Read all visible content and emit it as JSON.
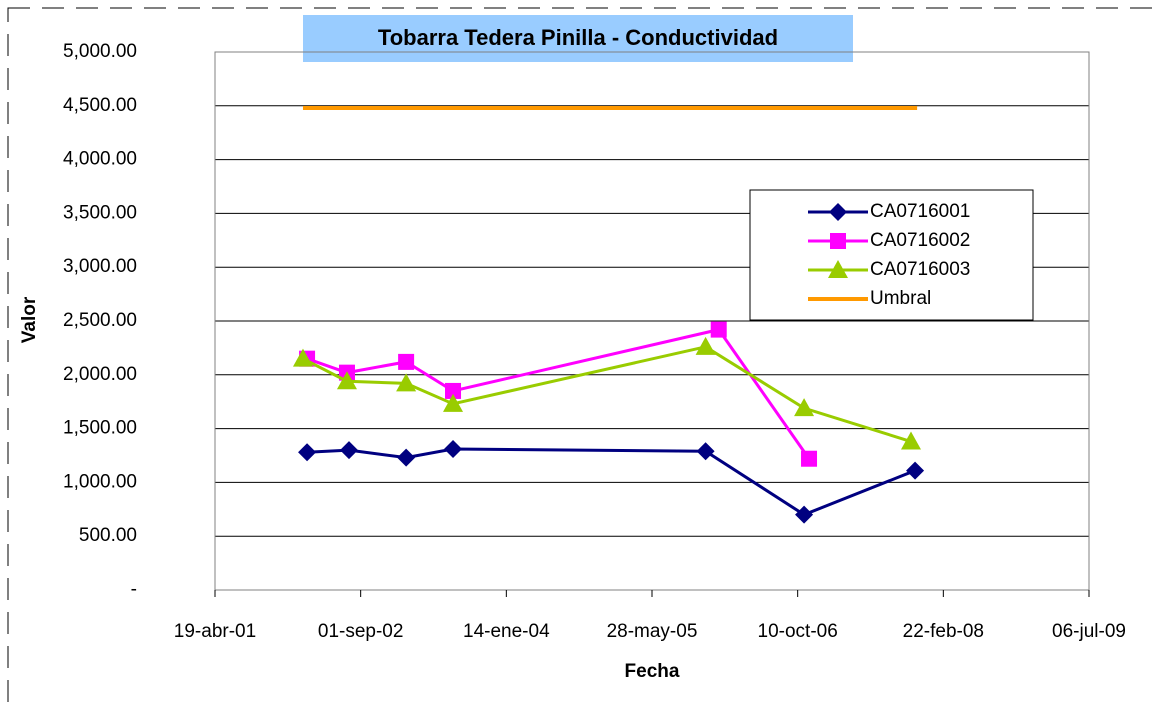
{
  "chart_data": {
    "type": "line",
    "title": "Tobarra Tedera Pinilla - Conductividad",
    "x_label": "Fecha",
    "y_label": "Valor",
    "xlim": [
      "2001-04-19",
      "2009-07-06"
    ],
    "xticks": [
      {
        "value": "2001-04-19",
        "label": "19-abr-01"
      },
      {
        "value": "2002-09-01",
        "label": "01-sep-02"
      },
      {
        "value": "2004-01-14",
        "label": "14-ene-04"
      },
      {
        "value": "2005-05-28",
        "label": "28-may-05"
      },
      {
        "value": "2006-10-10",
        "label": "10-oct-06"
      },
      {
        "value": "2008-02-22",
        "label": "22-feb-08"
      },
      {
        "value": "2009-07-06",
        "label": "06-jul-09"
      }
    ],
    "ylim": [
      0,
      5000
    ],
    "yticks": [
      {
        "value": 0,
        "label": "-"
      },
      {
        "value": 500,
        "label": "500.00"
      },
      {
        "value": 1000,
        "label": "1,000.00"
      },
      {
        "value": 1500,
        "label": "1,500.00"
      },
      {
        "value": 2000,
        "label": "2,000.00"
      },
      {
        "value": 2500,
        "label": "2,500.00"
      },
      {
        "value": 3000,
        "label": "3,000.00"
      },
      {
        "value": 3500,
        "label": "3,500.00"
      },
      {
        "value": 4000,
        "label": "4,000.00"
      },
      {
        "value": 4500,
        "label": "4,500.00"
      },
      {
        "value": 5000,
        "label": "5,000.00"
      }
    ],
    "grid": true,
    "legend": "right",
    "series": [
      {
        "name": "CA0716001",
        "color": "#000080",
        "marker": "diamond",
        "x": [
          "2002-03-01",
          "2002-07-23",
          "2003-02-04",
          "2003-07-15",
          "2005-11-28",
          "2006-11-01",
          "2007-11-17"
        ],
        "values": [
          1280,
          1300,
          1230,
          1310,
          1290,
          700,
          1110
        ]
      },
      {
        "name": "CA0716002",
        "color": "#ff00ff",
        "marker": "square",
        "x": [
          "2002-03-01",
          "2002-07-16",
          "2003-02-04",
          "2003-07-15",
          "2006-01-12",
          "2006-11-18"
        ],
        "values": [
          2150,
          2020,
          2120,
          1850,
          2420,
          1220
        ]
      },
      {
        "name": "CA0716003",
        "color": "#99cc00",
        "marker": "triangle",
        "x": [
          "2002-02-15",
          "2002-07-16",
          "2003-02-04",
          "2003-07-15",
          "2005-11-28",
          "2006-11-01",
          "2007-11-03"
        ],
        "values": [
          2150,
          1940,
          1920,
          1730,
          2260,
          1690,
          1380
        ]
      },
      {
        "name": "Umbral",
        "color": "#ff9900",
        "x": [
          "2002-02-15",
          "2007-11-24"
        ],
        "values": [
          4480,
          4480
        ]
      }
    ]
  }
}
